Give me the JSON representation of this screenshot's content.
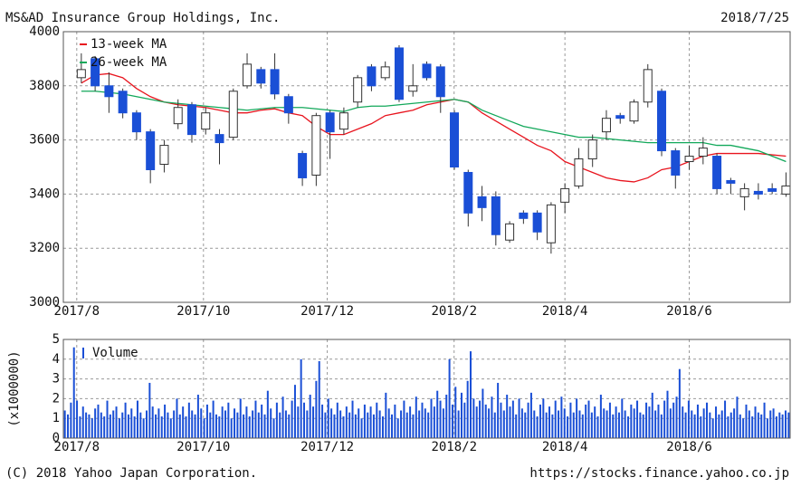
{
  "header": {
    "title": "MS&AD Insurance Group Holdings, Inc.",
    "date": "2018/7/25"
  },
  "footer": {
    "copyright": "(C) 2018 Yahoo Japan Corporation.",
    "url": "https://stocks.finance.yahoo.co.jp"
  },
  "chart_data": [
    {
      "type": "candlestick",
      "up_color": "#ffffff",
      "down_color": "#1a4fd6",
      "open": [
        3830,
        3900,
        3800,
        3780,
        3700,
        3630,
        3510,
        3660,
        3730,
        3640,
        3620,
        3610,
        3800,
        3860,
        3860,
        3760,
        3550,
        3470,
        3700,
        3640,
        3740,
        3870,
        3830,
        3940,
        3780,
        3880,
        3870,
        3700,
        3480,
        3390,
        3390,
        3230,
        3330,
        3330,
        3220,
        3370,
        3430,
        3530,
        3630,
        3690,
        3670,
        3740,
        3780,
        3560,
        3520,
        3540,
        3540,
        3450,
        3390,
        3410,
        3420,
        3400
      ],
      "high": [
        3920,
        3910,
        3850,
        3790,
        3710,
        3640,
        3600,
        3750,
        3740,
        3720,
        3640,
        3790,
        3920,
        3870,
        3920,
        3770,
        3560,
        3700,
        3710,
        3720,
        3840,
        3880,
        3890,
        3950,
        3880,
        3890,
        3880,
        3710,
        3490,
        3430,
        3410,
        3300,
        3340,
        3340,
        3370,
        3440,
        3570,
        3620,
        3710,
        3700,
        3750,
        3880,
        3790,
        3570,
        3580,
        3610,
        3550,
        3460,
        3440,
        3440,
        3440,
        3480
      ],
      "low": [
        3810,
        3780,
        3700,
        3680,
        3600,
        3440,
        3480,
        3640,
        3590,
        3620,
        3510,
        3600,
        3790,
        3790,
        3750,
        3660,
        3430,
        3430,
        3530,
        3620,
        3720,
        3780,
        3820,
        3740,
        3760,
        3820,
        3700,
        3490,
        3280,
        3300,
        3210,
        3220,
        3290,
        3230,
        3180,
        3330,
        3420,
        3500,
        3600,
        3660,
        3660,
        3720,
        3540,
        3420,
        3490,
        3510,
        3400,
        3400,
        3340,
        3380,
        3400,
        3390
      ],
      "close": [
        3860,
        3800,
        3760,
        3700,
        3630,
        3490,
        3580,
        3720,
        3620,
        3700,
        3590,
        3780,
        3880,
        3810,
        3770,
        3700,
        3460,
        3690,
        3630,
        3700,
        3830,
        3800,
        3870,
        3750,
        3800,
        3830,
        3760,
        3500,
        3330,
        3350,
        3250,
        3290,
        3310,
        3260,
        3360,
        3420,
        3530,
        3600,
        3680,
        3680,
        3740,
        3860,
        3560,
        3470,
        3540,
        3570,
        3420,
        3440,
        3420,
        3400,
        3410,
        3430
      ],
      "series": [
        {
          "name": "13-week MA",
          "color": "#e8141e",
          "values": [
            3810,
            3840,
            3845,
            3830,
            3790,
            3760,
            3740,
            3730,
            3725,
            3720,
            3710,
            3700,
            3700,
            3710,
            3715,
            3700,
            3690,
            3650,
            3620,
            3620,
            3640,
            3660,
            3690,
            3700,
            3710,
            3730,
            3740,
            3750,
            3740,
            3700,
            3670,
            3640,
            3610,
            3580,
            3560,
            3520,
            3500,
            3480,
            3460,
            3450,
            3445,
            3460,
            3490,
            3500,
            3520,
            3540,
            3550,
            3550,
            3550,
            3550,
            3545,
            3540
          ]
        },
        {
          "name": "26-week MA",
          "color": "#12a85a",
          "values": [
            3780,
            3780,
            3775,
            3770,
            3760,
            3750,
            3740,
            3735,
            3730,
            3725,
            3720,
            3715,
            3710,
            3715,
            3720,
            3720,
            3720,
            3715,
            3710,
            3705,
            3720,
            3725,
            3725,
            3730,
            3735,
            3740,
            3745,
            3750,
            3740,
            3710,
            3690,
            3670,
            3650,
            3640,
            3630,
            3620,
            3610,
            3610,
            3605,
            3600,
            3595,
            3590,
            3590,
            3590,
            3590,
            3590,
            3580,
            3580,
            3570,
            3560,
            3540,
            3520
          ]
        }
      ],
      "legend": "upper left",
      "xlim": [
        -1.3,
        51.3
      ],
      "xticks": [
        {
          "value": -0.33,
          "label": "2017/8"
        },
        {
          "value": 8.84,
          "label": "2017/10"
        },
        {
          "value": 17.8,
          "label": "2017/12"
        },
        {
          "value": 26.98,
          "label": "2018/2"
        },
        {
          "value": 35.0,
          "label": "2018/4"
        },
        {
          "value": 44.0,
          "label": "2018/6"
        }
      ],
      "ylim": [
        3000,
        4000
      ],
      "yticks": [
        3000,
        3200,
        3400,
        3600,
        3800,
        4000
      ],
      "grid": true
    },
    {
      "type": "bar",
      "y_label": "(x1000000)",
      "series": [
        {
          "name": "Volume",
          "color": "#1a4fd6",
          "values": [
            1.4,
            1.2,
            1.8,
            4.6,
            1.9,
            1.1,
            1.6,
            1.3,
            1.2,
            1.0,
            1.5,
            1.7,
            1.3,
            1.1,
            1.9,
            1.2,
            1.4,
            1.6,
            1.0,
            1.3,
            1.8,
            1.2,
            1.5,
            1.1,
            1.9,
            1.3,
            1.0,
            1.4,
            2.8,
            1.6,
            1.2,
            1.5,
            1.1,
            1.7,
            1.3,
            1.0,
            1.4,
            2.0,
            1.2,
            1.6,
            1.1,
            1.8,
            1.4,
            1.2,
            2.2,
            1.5,
            1.0,
            1.7,
            1.3,
            1.9,
            1.2,
            1.1,
            1.6,
            1.4,
            1.8,
            1.0,
            1.5,
            1.3,
            2.0,
            1.2,
            1.6,
            1.1,
            1.4,
            1.9,
            1.3,
            1.7,
            1.2,
            2.4,
            1.5,
            1.0,
            1.8,
            1.3,
            2.1,
            1.4,
            1.2,
            1.9,
            2.7,
            1.6,
            4.0,
            1.8,
            1.4,
            2.2,
            1.6,
            2.9,
            3.9,
            1.7,
            1.3,
            2.0,
            1.5,
            1.2,
            1.8,
            1.4,
            1.1,
            1.6,
            1.3,
            1.9,
            1.2,
            1.5,
            1.0,
            1.7,
            1.3,
            1.6,
            1.2,
            1.8,
            1.4,
            1.1,
            2.3,
            1.5,
            1.2,
            1.7,
            1.0,
            1.4,
            1.9,
            1.3,
            1.6,
            1.2,
            2.1,
            1.4,
            1.8,
            1.5,
            1.3,
            2.0,
            1.6,
            2.4,
            1.9,
            1.5,
            2.2,
            4.0,
            1.7,
            2.6,
            1.4,
            2.3,
            1.8,
            2.9,
            4.4,
            2.0,
            1.6,
            1.9,
            2.5,
            1.7,
            1.5,
            2.1,
            1.3,
            2.8,
            1.8,
            1.4,
            2.2,
            1.6,
            1.9,
            1.2,
            2.0,
            1.5,
            1.3,
            1.8,
            2.3,
            1.4,
            1.1,
            1.7,
            2.0,
            1.3,
            1.6,
            1.2,
            1.9,
            1.4,
            2.1,
            1.5,
            1.1,
            1.8,
            1.3,
            2.0,
            1.4,
            1.2,
            1.7,
            1.9,
            1.3,
            1.6,
            1.1,
            2.2,
            1.5,
            1.4,
            1.8,
            1.2,
            1.6,
            1.3,
            2.0,
            1.4,
            1.1,
            1.7,
            1.5,
            1.9,
            1.3,
            1.2,
            1.8,
            1.6,
            2.3,
            1.4,
            1.7,
            1.2,
            1.9,
            2.4,
            1.5,
            1.8,
            2.1,
            3.5,
            1.6,
            1.3,
            1.9,
            1.4,
            1.2,
            1.7,
            1.1,
            1.5,
            1.8,
            1.3,
            1.0,
            1.6,
            1.2,
            1.4,
            1.9,
            1.1,
            1.3,
            1.5,
            2.1,
            1.2,
            1.0,
            1.7,
            1.4,
            1.1,
            1.6,
            1.3,
            1.2,
            1.8,
            1.0,
            1.4,
            1.5,
            1.1,
            1.3,
            1.2,
            1.4,
            1.3
          ]
        }
      ],
      "legend": "upper left",
      "xlim": [
        -1.3,
        51.3
      ],
      "xticks": [
        {
          "value": -0.33,
          "label": "2017/8"
        },
        {
          "value": 8.84,
          "label": "2017/10"
        },
        {
          "value": 17.8,
          "label": "2017/12"
        },
        {
          "value": 26.98,
          "label": "2018/2"
        },
        {
          "value": 35.0,
          "label": "2018/4"
        },
        {
          "value": 44.0,
          "label": "2018/6"
        }
      ],
      "ylim": [
        0,
        5
      ],
      "yticks": [
        0,
        1,
        2,
        3,
        4,
        5
      ],
      "grid": true
    }
  ]
}
